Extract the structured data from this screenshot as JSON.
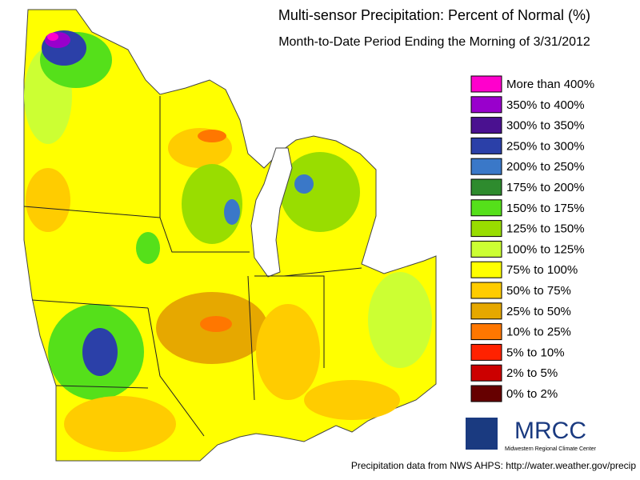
{
  "header": {
    "title": "Multi-sensor Precipitation: Percent of Normal (%)",
    "subtitle": "Month-to-Date Period Ending the Morning of 3/31/2012"
  },
  "legend": {
    "entries": [
      {
        "label": "More than 400%",
        "color": "#ff00cc"
      },
      {
        "label": "350% to 400%",
        "color": "#9900cc"
      },
      {
        "label": "300% to 350%",
        "color": "#4a1190"
      },
      {
        "label": "250% to 300%",
        "color": "#2b40a8"
      },
      {
        "label": "200% to 250%",
        "color": "#3a78c8"
      },
      {
        "label": "175% to 200%",
        "color": "#2e8b2e"
      },
      {
        "label": "150% to 175%",
        "color": "#55e01a"
      },
      {
        "label": "125% to 150%",
        "color": "#99dd00"
      },
      {
        "label": "100% to 125%",
        "color": "#ccff33"
      },
      {
        "label": "75% to 100%",
        "color": "#ffff00"
      },
      {
        "label": "50% to 75%",
        "color": "#ffcc00"
      },
      {
        "label": "25% to 50%",
        "color": "#e6a800"
      },
      {
        "label": "10% to 25%",
        "color": "#ff7700"
      },
      {
        "label": "5% to 10%",
        "color": "#ff2200"
      },
      {
        "label": "2% to 5%",
        "color": "#cc0000"
      },
      {
        "label": "0% to 2%",
        "color": "#660000"
      }
    ]
  },
  "logo": {
    "name": "MRCC",
    "full_name": "Midwestern Regional Climate Center"
  },
  "footer": {
    "source": "Precipitation data from NWS AHPS:  http://water.weather.gov/precip"
  }
}
